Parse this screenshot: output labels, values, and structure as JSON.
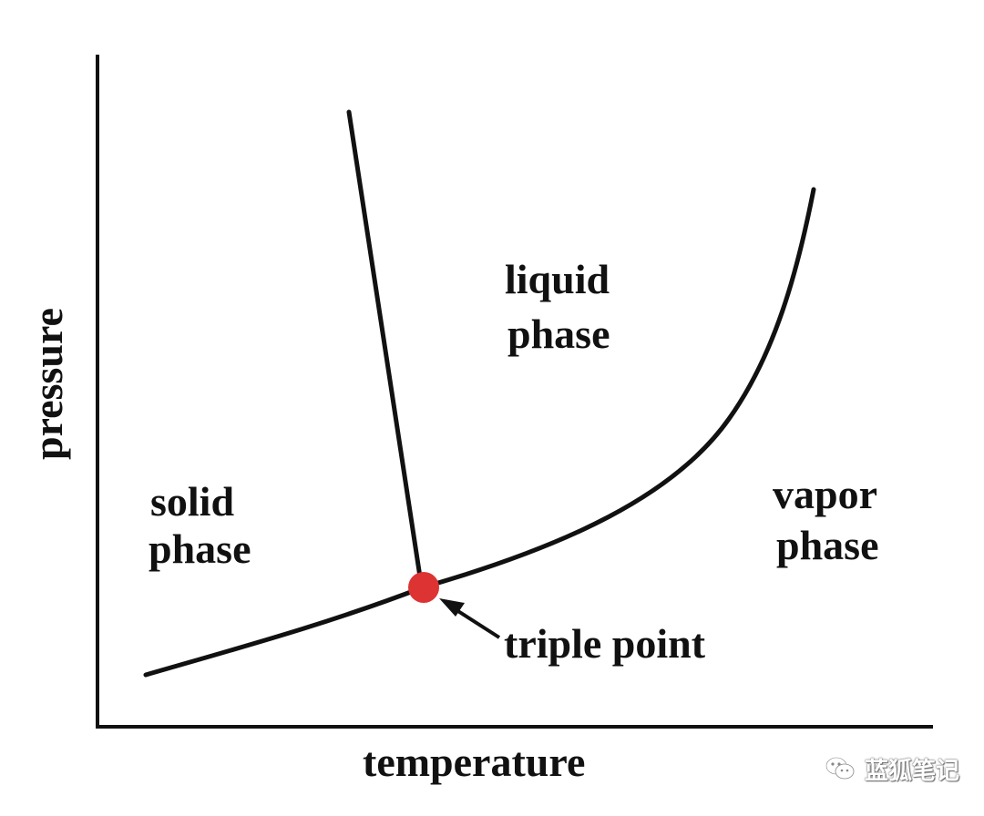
{
  "diagram": {
    "axes": {
      "x_label": "temperature",
      "y_label": "pressure"
    },
    "regions": [
      {
        "id": "solid",
        "lines": [
          "solid",
          "phase"
        ]
      },
      {
        "id": "liquid",
        "lines": [
          "liquid",
          "phase"
        ]
      },
      {
        "id": "vapor",
        "lines": [
          "vapor",
          "phase"
        ]
      }
    ],
    "callout": {
      "label": "triple point"
    },
    "colors": {
      "curve": "#111111",
      "axis": "#111111",
      "triple_point": "#dd3333"
    }
  },
  "watermark": {
    "text": "蓝狐笔记",
    "icon": "wechat-icon"
  }
}
